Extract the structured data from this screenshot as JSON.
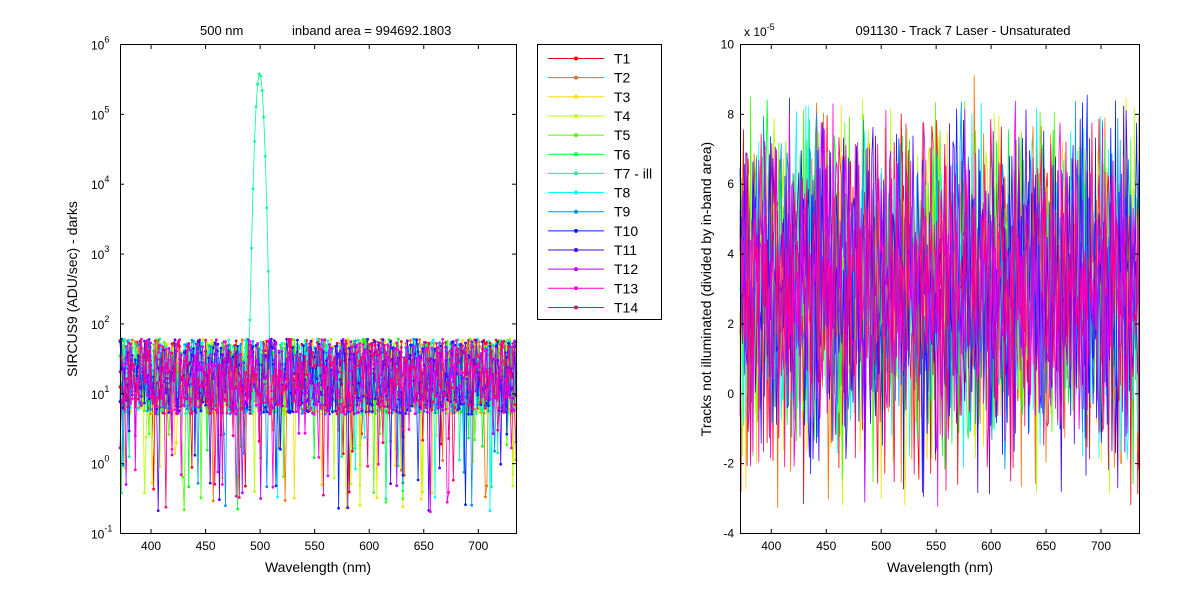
{
  "chart_data": [
    {
      "type": "line",
      "title_left": "500 nm",
      "title_right": "inband area = 994692.1803",
      "xlabel": "Wavelength (nm)",
      "ylabel": "SIRCUS9  (ADU/sec) - darks",
      "yscale": "log",
      "xlim": [
        372,
        735
      ],
      "ylim": [
        0.1,
        1000000
      ],
      "xticks": [
        400,
        450,
        500,
        550,
        600,
        650,
        700
      ],
      "xtick_labels": [
        "400",
        "450",
        "500",
        "550",
        "600",
        "650",
        "700"
      ],
      "ytick_labels": [
        {
          "base": "10",
          "exp": "-1"
        },
        {
          "base": "10",
          "exp": "0"
        },
        {
          "base": "10",
          "exp": "1"
        },
        {
          "base": "10",
          "exp": "2"
        },
        {
          "base": "10",
          "exp": "3"
        },
        {
          "base": "10",
          "exp": "4"
        },
        {
          "base": "10",
          "exp": "5"
        },
        {
          "base": "10",
          "exp": "6"
        }
      ],
      "markers": true,
      "noise_band": {
        "typical_min": 5,
        "typical_max": 60,
        "outlier_min": 0.2
      },
      "peak": {
        "series": "T7 - ill",
        "center_nm": 500,
        "peak_value": 380000
      },
      "legend": "right-outside",
      "series": [
        {
          "name": "T1",
          "color": "#ff0000"
        },
        {
          "name": "T2",
          "color": "#ff6e00"
        },
        {
          "name": "T3",
          "color": "#ffdc00"
        },
        {
          "name": "T4",
          "color": "#b9ff00"
        },
        {
          "name": "T5",
          "color": "#4bff00"
        },
        {
          "name": "T6",
          "color": "#00ff23"
        },
        {
          "name": "T7 - ill",
          "color": "#00ff91"
        },
        {
          "name": "T8",
          "color": "#00ffff"
        },
        {
          "name": "T9",
          "color": "#0091ff"
        },
        {
          "name": "T10",
          "color": "#0023ff"
        },
        {
          "name": "T11",
          "color": "#4b00ff"
        },
        {
          "name": "T12",
          "color": "#b900ff"
        },
        {
          "name": "T13",
          "color": "#ff00dc"
        },
        {
          "name": "T14",
          "color": "#ff006e"
        }
      ]
    },
    {
      "type": "line",
      "title": "091130 - Track 7 Laser - Unsaturated",
      "xlabel": "Wavelength (nm)",
      "ylabel": "Tracks not illuminated (divided by in-band area)",
      "yscale": "linear",
      "xlim": [
        372,
        735
      ],
      "ylim": [
        -4,
        10
      ],
      "xticks": [
        400,
        450,
        500,
        550,
        600,
        650,
        700
      ],
      "xtick_labels": [
        "400",
        "450",
        "500",
        "550",
        "600",
        "650",
        "700"
      ],
      "yticks": [
        -4,
        -2,
        0,
        2,
        4,
        6,
        8,
        10
      ],
      "ytick_labels": [
        "-4",
        "-2",
        "0",
        "2",
        "4",
        "6",
        "8",
        "10"
      ],
      "y_multiplier": {
        "base": "x 10",
        "exp": "-5"
      },
      "noise_band": {
        "center": 3,
        "typical_min": 0.5,
        "typical_max": 6,
        "outlier_min": -3.3,
        "outlier_max": 8.4
      },
      "series": [
        {
          "name": "T1",
          "color": "#ff0000"
        },
        {
          "name": "T2",
          "color": "#ff6e00"
        },
        {
          "name": "T3",
          "color": "#ffdc00"
        },
        {
          "name": "T4",
          "color": "#b9ff00"
        },
        {
          "name": "T5",
          "color": "#4bff00"
        },
        {
          "name": "T6",
          "color": "#00ff23"
        },
        {
          "name": "T8",
          "color": "#00ffff"
        },
        {
          "name": "T9",
          "color": "#0091ff"
        },
        {
          "name": "T10",
          "color": "#0023ff"
        },
        {
          "name": "T11",
          "color": "#4b00ff"
        },
        {
          "name": "T12",
          "color": "#b900ff"
        },
        {
          "name": "T13",
          "color": "#ff00dc"
        },
        {
          "name": "T14",
          "color": "#ff006e"
        }
      ]
    }
  ]
}
